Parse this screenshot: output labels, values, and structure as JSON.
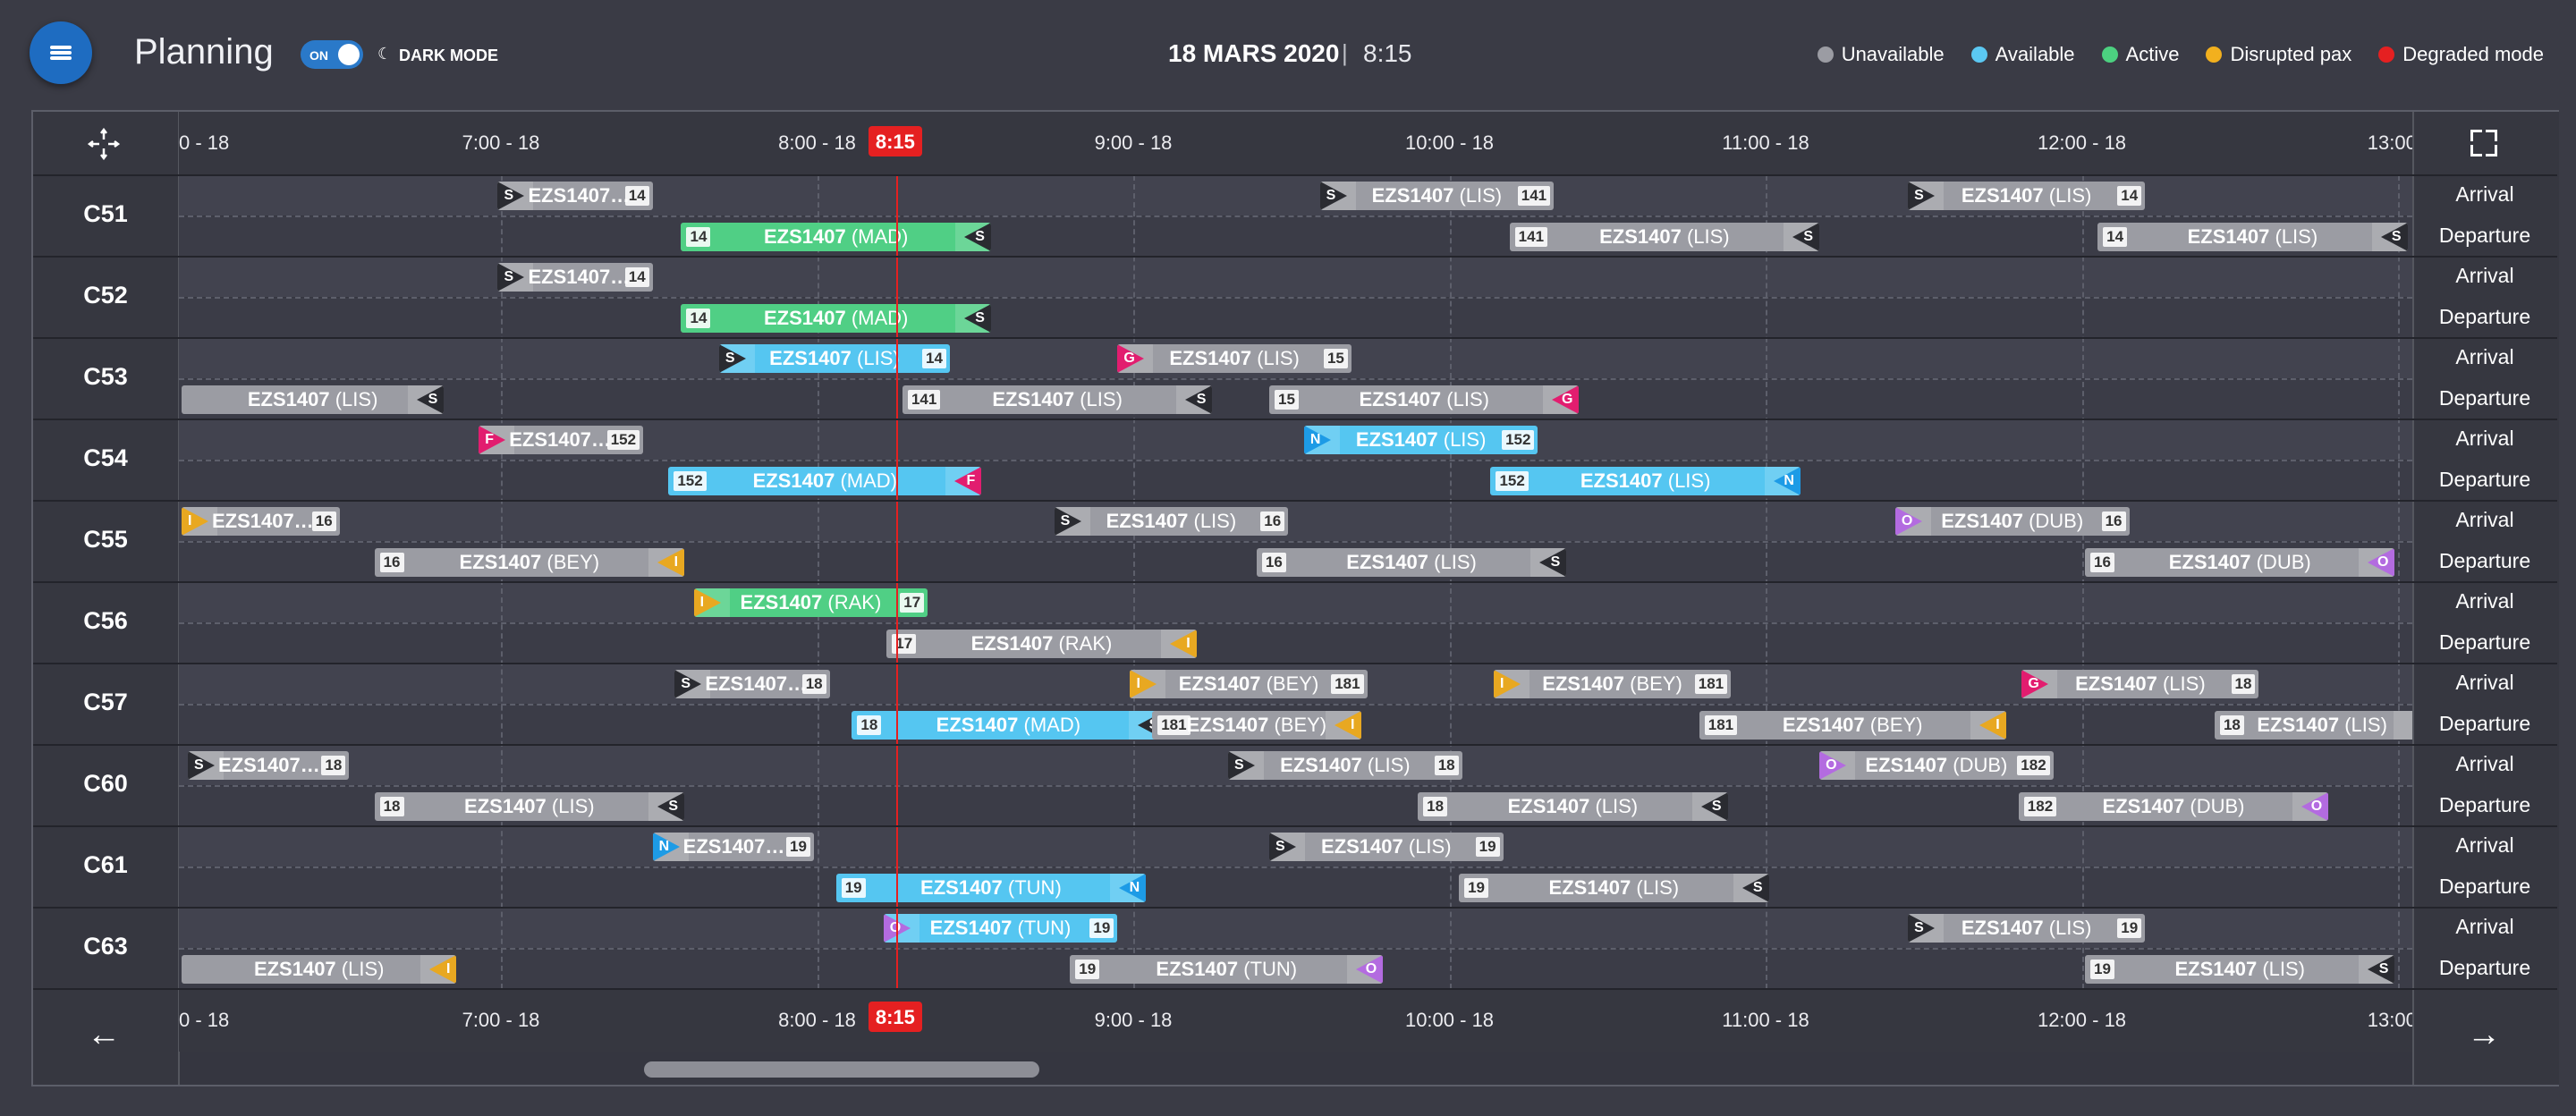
{
  "header": {
    "title": "Planning",
    "toggle_label": "ON",
    "dark_mode_label": "DARK MODE",
    "date": "18 MARS 2020",
    "separator": "|",
    "time": "8:15"
  },
  "legend": [
    {
      "label": "Unavailable",
      "color": "#9b9ca3"
    },
    {
      "label": "Available",
      "color": "#5bc8f2"
    },
    {
      "label": "Active",
      "color": "#4cd080"
    },
    {
      "label": "Disrupted pax",
      "color": "#f2b01e"
    },
    {
      "label": "Degraded mode",
      "color": "#e52021"
    }
  ],
  "timeline": {
    "ticks": [
      "0 - 18",
      "7:00 - 18",
      "8:00 - 18",
      "9:00 - 18",
      "10:00 - 18",
      "11:00 - 18",
      "12:00 - 18",
      "13:00 -"
    ],
    "now_label": "8:15"
  },
  "status_colors": {
    "unavailable": "#9b9ca3",
    "available": "#55c6f1",
    "active": "#50cf85"
  },
  "letter_colors": {
    "S": "#2a2b31",
    "G": "#e21d6f",
    "F": "#e21d6f",
    "N": "#1d9be6",
    "I": "#e8a821",
    "O": "#b36be0"
  },
  "gates": [
    {
      "name": "C51",
      "arrival": [
        {
          "start": 6.99,
          "end": 7.48,
          "flight": "EZS1407…",
          "dest": "",
          "badge": "14",
          "letter": "S",
          "status": "unavailable"
        },
        {
          "start": 9.59,
          "end": 10.33,
          "flight": "EZS1407",
          "dest": "(LIS)",
          "badge": "141",
          "letter": "S",
          "status": "unavailable"
        },
        {
          "start": 11.45,
          "end": 12.2,
          "flight": "EZS1407",
          "dest": "(LIS)",
          "badge": "14",
          "letter": "S",
          "status": "unavailable"
        }
      ],
      "departure": [
        {
          "start": 7.57,
          "end": 8.55,
          "flight": "EZS1407",
          "dest": "(MAD)",
          "badge": "14",
          "letter": "S",
          "status": "active"
        },
        {
          "start": 10.19,
          "end": 11.17,
          "flight": "EZS1407",
          "dest": "(LIS)",
          "badge": "141",
          "letter": "S",
          "status": "unavailable"
        },
        {
          "start": 12.05,
          "end": 13.03,
          "flight": "EZS1407",
          "dest": "(LIS)",
          "badge": "14",
          "letter": "S",
          "status": "unavailable"
        }
      ]
    },
    {
      "name": "C52",
      "arrival": [
        {
          "start": 6.99,
          "end": 7.48,
          "flight": "EZS1407…",
          "dest": "",
          "badge": "14",
          "letter": "S",
          "status": "unavailable"
        }
      ],
      "departure": [
        {
          "start": 7.57,
          "end": 8.55,
          "flight": "EZS1407",
          "dest": "(MAD)",
          "badge": "14",
          "letter": "S",
          "status": "active"
        }
      ]
    },
    {
      "name": "C53",
      "arrival": [
        {
          "start": 7.69,
          "end": 8.42,
          "flight": "EZS1407",
          "dest": "(LIS)",
          "badge": "14",
          "letter": "S",
          "status": "available"
        },
        {
          "start": 8.95,
          "end": 9.69,
          "flight": "EZS1407",
          "dest": "(LIS)",
          "badge": "15",
          "letter": "G",
          "status": "unavailable"
        }
      ],
      "departure": [
        {
          "start": 5.99,
          "end": 6.82,
          "flight": "EZS1407",
          "dest": "(LIS)",
          "badge": "",
          "letter": "S",
          "status": "unavailable"
        },
        {
          "start": 8.27,
          "end": 9.25,
          "flight": "EZS1407",
          "dest": "(LIS)",
          "badge": "141",
          "letter": "S",
          "status": "unavailable"
        },
        {
          "start": 9.43,
          "end": 10.41,
          "flight": "EZS1407",
          "dest": "(LIS)",
          "badge": "15",
          "letter": "G",
          "status": "unavailable"
        }
      ]
    },
    {
      "name": "C54",
      "arrival": [
        {
          "start": 6.93,
          "end": 7.45,
          "flight": "EZS1407…",
          "dest": "",
          "badge": "152",
          "letter": "F",
          "status": "unavailable"
        },
        {
          "start": 9.54,
          "end": 10.28,
          "flight": "EZS1407",
          "dest": "(LIS)",
          "badge": "152",
          "letter": "N",
          "status": "available"
        }
      ],
      "departure": [
        {
          "start": 7.53,
          "end": 8.52,
          "flight": "EZS1407",
          "dest": "(MAD)",
          "badge": "152",
          "letter": "F",
          "status": "available"
        },
        {
          "start": 10.13,
          "end": 11.11,
          "flight": "EZS1407",
          "dest": "(LIS)",
          "badge": "152",
          "letter": "N",
          "status": "available"
        }
      ]
    },
    {
      "name": "C55",
      "arrival": [
        {
          "start": 5.99,
          "end": 6.49,
          "flight": "EZS1407…",
          "dest": "",
          "badge": "16",
          "letter": "I",
          "status": "unavailable"
        },
        {
          "start": 8.75,
          "end": 9.49,
          "flight": "EZS1407",
          "dest": "(LIS)",
          "badge": "16",
          "letter": "S",
          "status": "unavailable"
        },
        {
          "start": 11.41,
          "end": 12.15,
          "flight": "EZS1407",
          "dest": "(DUB)",
          "badge": "16",
          "letter": "O",
          "status": "unavailable"
        }
      ],
      "departure": [
        {
          "start": 6.6,
          "end": 7.58,
          "flight": "EZS1407",
          "dest": "(BEY)",
          "badge": "16",
          "letter": "I",
          "status": "unavailable"
        },
        {
          "start": 9.39,
          "end": 10.37,
          "flight": "EZS1407",
          "dest": "(LIS)",
          "badge": "16",
          "letter": "S",
          "status": "unavailable"
        },
        {
          "start": 12.01,
          "end": 12.99,
          "flight": "EZS1407",
          "dest": "(DUB)",
          "badge": "16",
          "letter": "O",
          "status": "unavailable"
        }
      ]
    },
    {
      "name": "C56",
      "arrival": [
        {
          "start": 7.61,
          "end": 8.35,
          "flight": "EZS1407",
          "dest": "(RAK)",
          "badge": "17",
          "letter": "I",
          "status": "active"
        }
      ],
      "departure": [
        {
          "start": 8.22,
          "end": 9.2,
          "flight": "EZS1407",
          "dest": "(RAK)",
          "badge": "17",
          "letter": "I",
          "status": "unavailable"
        }
      ]
    },
    {
      "name": "C57",
      "arrival": [
        {
          "start": 7.55,
          "end": 8.04,
          "flight": "EZS1407…",
          "dest": "",
          "badge": "18",
          "letter": "S",
          "status": "unavailable"
        },
        {
          "start": 8.99,
          "end": 9.74,
          "flight": "EZS1407",
          "dest": "(BEY)",
          "badge": "181",
          "letter": "I",
          "status": "unavailable"
        },
        {
          "start": 10.14,
          "end": 10.89,
          "flight": "EZS1407",
          "dest": "(BEY)",
          "badge": "181",
          "letter": "I",
          "status": "unavailable"
        },
        {
          "start": 11.81,
          "end": 12.56,
          "flight": "EZS1407",
          "dest": "(LIS)",
          "badge": "18",
          "letter": "G",
          "status": "unavailable"
        }
      ],
      "departure": [
        {
          "start": 8.11,
          "end": 9.1,
          "flight": "EZS1407",
          "dest": "(MAD)",
          "badge": "18",
          "letter": "S",
          "status": "available"
        },
        {
          "start": 9.06,
          "end": 9.72,
          "flight": "EZS1407",
          "dest": "(BEY)",
          "badge": "181",
          "letter": "I",
          "status": "unavailable"
        },
        {
          "start": 10.79,
          "end": 11.76,
          "flight": "EZS1407",
          "dest": "(BEY)",
          "badge": "181",
          "letter": "I",
          "status": "unavailable"
        },
        {
          "start": 12.42,
          "end": 13.1,
          "flight": "EZS1407",
          "dest": "(LIS)",
          "badge": "18",
          "letter": "",
          "status": "unavailable"
        }
      ]
    },
    {
      "name": "C60",
      "arrival": [
        {
          "start": 6.01,
          "end": 6.52,
          "flight": "EZS1407…",
          "dest": "",
          "badge": "18",
          "letter": "S",
          "status": "unavailable"
        },
        {
          "start": 9.3,
          "end": 10.04,
          "flight": "EZS1407",
          "dest": "(LIS)",
          "badge": "18",
          "letter": "S",
          "status": "unavailable"
        },
        {
          "start": 11.17,
          "end": 11.91,
          "flight": "EZS1407",
          "dest": "(DUB)",
          "badge": "182",
          "letter": "O",
          "status": "unavailable"
        }
      ],
      "departure": [
        {
          "start": 6.6,
          "end": 7.58,
          "flight": "EZS1407",
          "dest": "(LIS)",
          "badge": "18",
          "letter": "S",
          "status": "unavailable"
        },
        {
          "start": 9.9,
          "end": 10.88,
          "flight": "EZS1407",
          "dest": "(LIS)",
          "badge": "18",
          "letter": "S",
          "status": "unavailable"
        },
        {
          "start": 11.8,
          "end": 12.78,
          "flight": "EZS1407",
          "dest": "(DUB)",
          "badge": "182",
          "letter": "O",
          "status": "unavailable"
        }
      ]
    },
    {
      "name": "C61",
      "arrival": [
        {
          "start": 7.48,
          "end": 7.99,
          "flight": "EZS1407…",
          "dest": "",
          "badge": "19",
          "letter": "N",
          "status": "unavailable"
        },
        {
          "start": 9.43,
          "end": 10.17,
          "flight": "EZS1407",
          "dest": "(LIS)",
          "badge": "19",
          "letter": "S",
          "status": "unavailable"
        }
      ],
      "departure": [
        {
          "start": 8.06,
          "end": 9.04,
          "flight": "EZS1407",
          "dest": "(TUN)",
          "badge": "19",
          "letter": "N",
          "status": "available"
        },
        {
          "start": 10.03,
          "end": 11.01,
          "flight": "EZS1407",
          "dest": "(LIS)",
          "badge": "19",
          "letter": "S",
          "status": "unavailable"
        }
      ]
    },
    {
      "name": "C63",
      "arrival": [
        {
          "start": 8.21,
          "end": 8.95,
          "flight": "EZS1407",
          "dest": "(TUN)",
          "badge": "19",
          "letter": "O",
          "status": "available"
        },
        {
          "start": 11.45,
          "end": 12.2,
          "flight": "EZS1407",
          "dest": "(LIS)",
          "badge": "19",
          "letter": "S",
          "status": "unavailable"
        }
      ],
      "departure": [
        {
          "start": 5.99,
          "end": 6.86,
          "flight": "EZS1407",
          "dest": "(LIS)",
          "badge": "",
          "letter": "I",
          "status": "unavailable"
        },
        {
          "start": 8.8,
          "end": 9.79,
          "flight": "EZS1407",
          "dest": "(TUN)",
          "badge": "19",
          "letter": "O",
          "status": "unavailable"
        },
        {
          "start": 12.01,
          "end": 12.99,
          "flight": "EZS1407",
          "dest": "(LIS)",
          "badge": "19",
          "letter": "S",
          "status": "unavailable"
        }
      ]
    }
  ],
  "row_labels": {
    "arrival": "Arrival",
    "departure": "Departure"
  },
  "footer": {
    "prev_arrow": "←",
    "next_arrow": "→"
  }
}
